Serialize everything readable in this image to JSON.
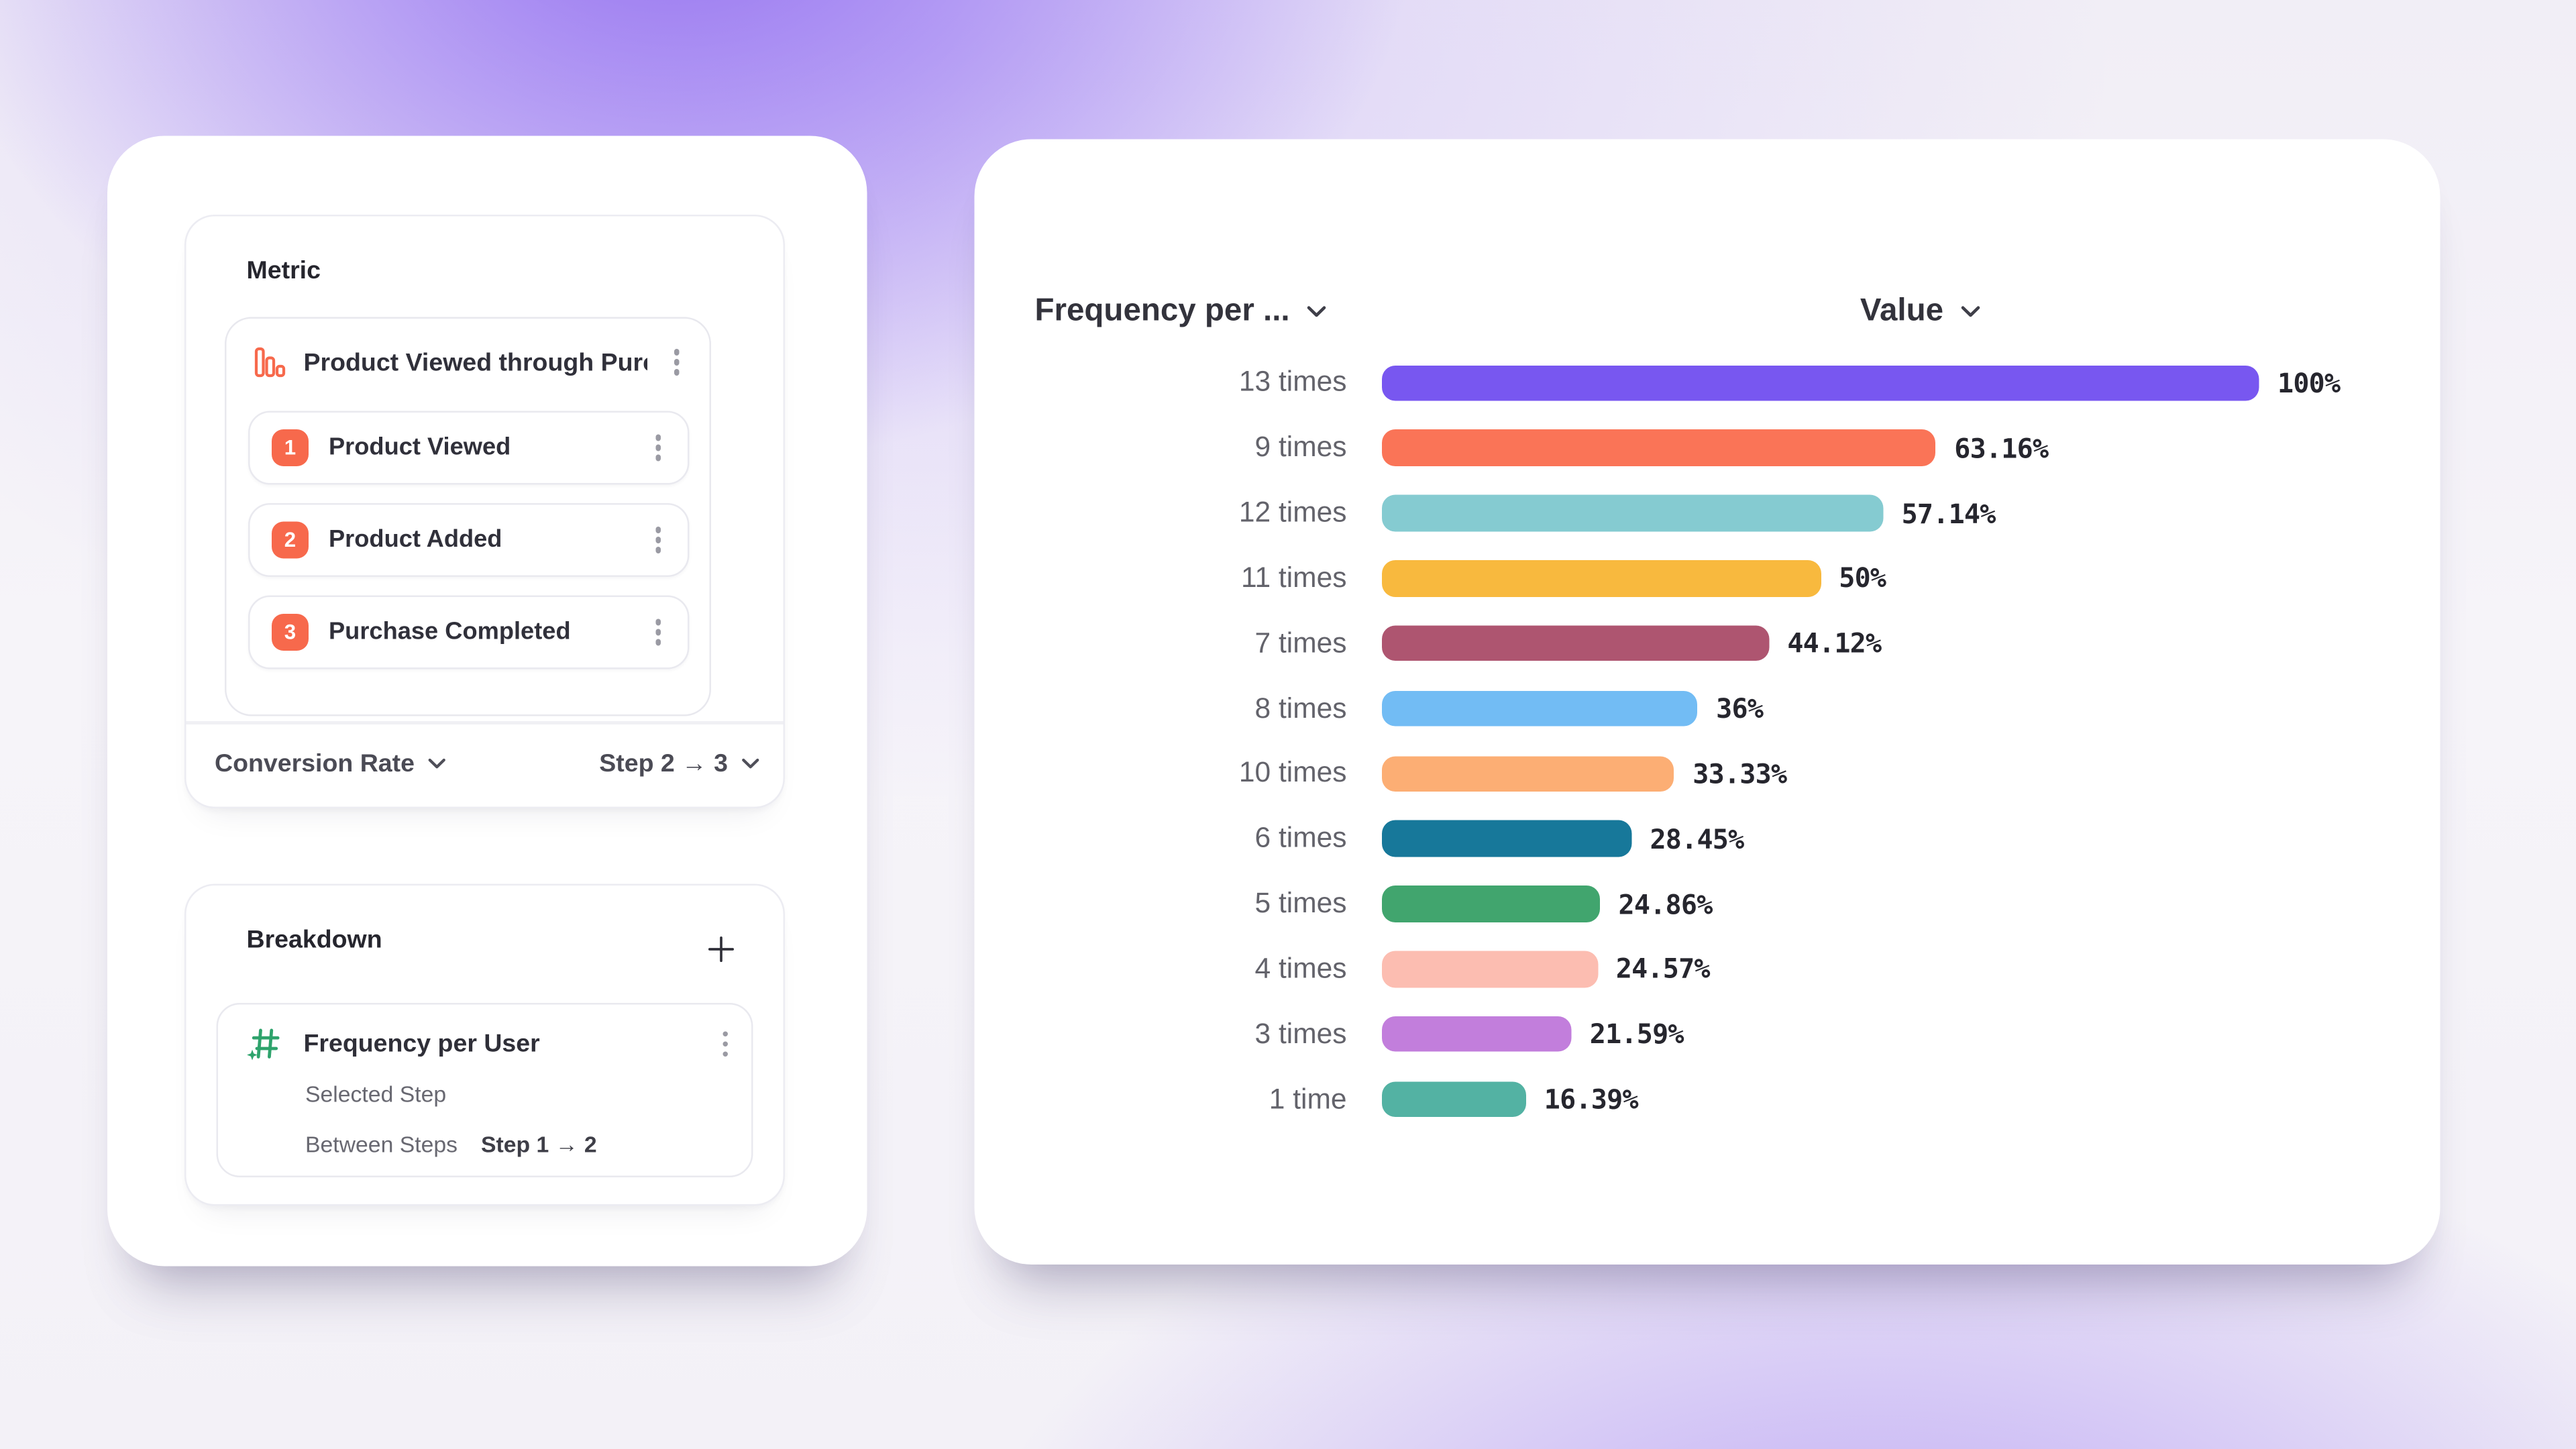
{
  "background": {
    "accent_purple": "#8F6BF0"
  },
  "left_panel": {
    "metric_card": {
      "title": "Metric",
      "funnel": {
        "icon": "funnel-bars-icon",
        "icon_color": "#F7694C",
        "name": "Product Viewed through Purch...",
        "steps": [
          {
            "number": "1",
            "label": "Product Viewed"
          },
          {
            "number": "2",
            "label": "Product Added"
          },
          {
            "number": "3",
            "label": "Purchase Completed"
          }
        ],
        "badge_color": "#F7694C"
      },
      "footer": {
        "measure": "Conversion Rate",
        "steps_range": "Step 2 → 3"
      }
    },
    "breakdown_card": {
      "title": "Breakdown",
      "add_button": "+",
      "item": {
        "icon": "hash-sparkle-icon",
        "icon_color": "#2EA36C",
        "name": "Frequency per User",
        "selected_step_label": "Selected Step",
        "between_steps_label": "Between Steps",
        "between_steps_value": "Step 1 → 2"
      }
    }
  },
  "chart_data": {
    "type": "bar",
    "orientation": "horizontal",
    "x_axis_header": "Frequency per ...",
    "value_header": "Value",
    "categories": [
      "13 times",
      "9 times",
      "12 times",
      "11 times",
      "7 times",
      "8 times",
      "10 times",
      "6 times",
      "5 times",
      "4 times",
      "3 times",
      "1 time"
    ],
    "values": [
      100,
      63.16,
      57.14,
      50,
      44.12,
      36,
      33.33,
      28.45,
      24.86,
      24.57,
      21.59,
      16.39
    ],
    "value_labels": [
      "100%",
      "63.16%",
      "57.14%",
      "50%",
      "44.12%",
      "36%",
      "33.33%",
      "28.45%",
      "24.86%",
      "24.57%",
      "21.59%",
      "16.39%"
    ],
    "bar_colors": [
      "#7857F0",
      "#FA7457",
      "#85CBD1",
      "#F8B93E",
      "#AE5570",
      "#72BCF4",
      "#FCAE74",
      "#17789A",
      "#41A56E",
      "#FCBDB1",
      "#C27EDC",
      "#53B2A3"
    ],
    "xlim": [
      0,
      100
    ],
    "grid": false,
    "legend": false
  }
}
